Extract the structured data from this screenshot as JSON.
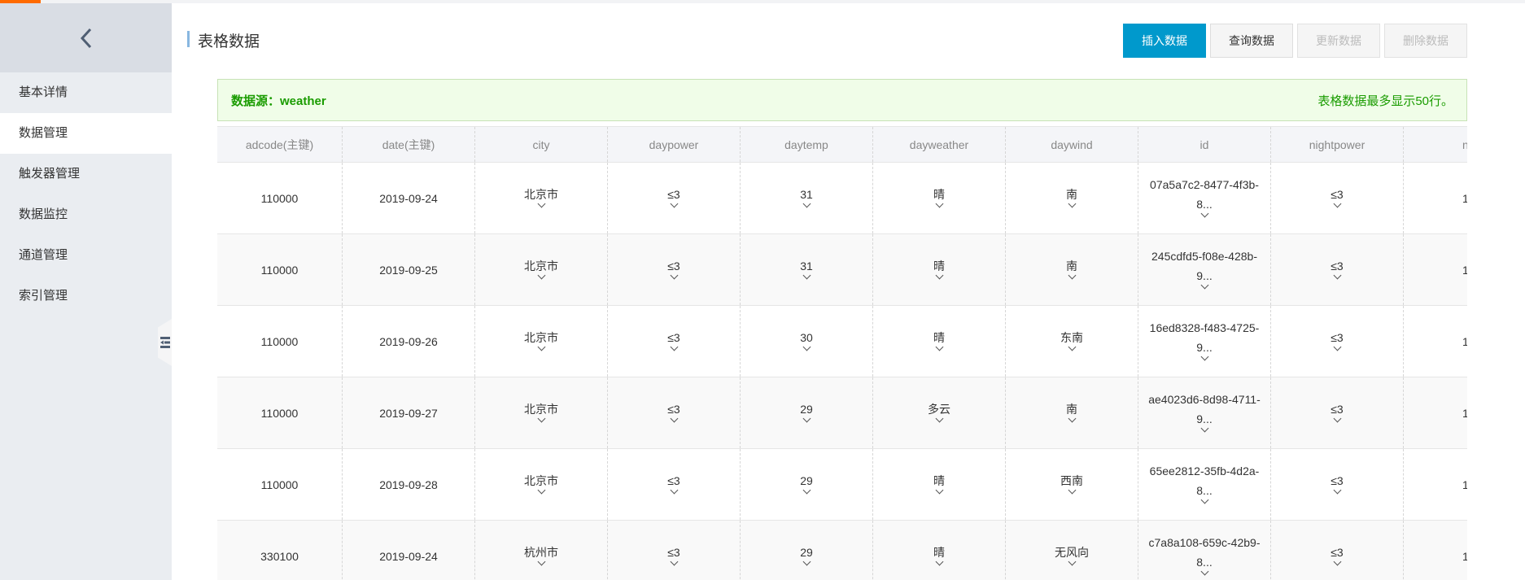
{
  "sidebar": {
    "items": [
      {
        "label": "基本详情"
      },
      {
        "label": "数据管理",
        "active": true
      },
      {
        "label": "触发器管理"
      },
      {
        "label": "数据监控"
      },
      {
        "label": "通道管理"
      },
      {
        "label": "索引管理"
      }
    ]
  },
  "page": {
    "title": "表格数据"
  },
  "toolbar": {
    "insert": "插入数据",
    "query": "查询数据",
    "update": "更新数据",
    "delete": "删除数据"
  },
  "banner": {
    "source": "数据源：weather",
    "note": "表格数据最多显示50行。"
  },
  "table": {
    "columns": [
      "adcode(主键)",
      "date(主键)",
      "city",
      "daypower",
      "daytemp",
      "dayweather",
      "daywind",
      "id",
      "nightpower",
      "nighttemp"
    ],
    "rows": [
      [
        "110000",
        "2019-09-24",
        "北京市",
        "≤3",
        "31",
        "晴",
        "南",
        "07a5a7c2-8477-4f3b-8...",
        "≤3",
        "1"
      ],
      [
        "110000",
        "2019-09-25",
        "北京市",
        "≤3",
        "31",
        "晴",
        "南",
        "245cdfd5-f08e-428b-9...",
        "≤3",
        "1"
      ],
      [
        "110000",
        "2019-09-26",
        "北京市",
        "≤3",
        "30",
        "晴",
        "东南",
        "16ed8328-f483-4725-9...",
        "≤3",
        "1"
      ],
      [
        "110000",
        "2019-09-27",
        "北京市",
        "≤3",
        "29",
        "多云",
        "南",
        "ae4023d6-8d98-4711-9...",
        "≤3",
        "1"
      ],
      [
        "110000",
        "2019-09-28",
        "北京市",
        "≤3",
        "29",
        "晴",
        "西南",
        "65ee2812-35fb-4d2a-8...",
        "≤3",
        "1"
      ],
      [
        "330100",
        "2019-09-24",
        "杭州市",
        "≤3",
        "29",
        "晴",
        "无风向",
        "c7a8a108-659c-42b9-8...",
        "≤3",
        "1"
      ]
    ]
  },
  "colors": {
    "accent": "#0099cc",
    "brand": "#ff6a00",
    "banner_text": "#1a9c00"
  }
}
